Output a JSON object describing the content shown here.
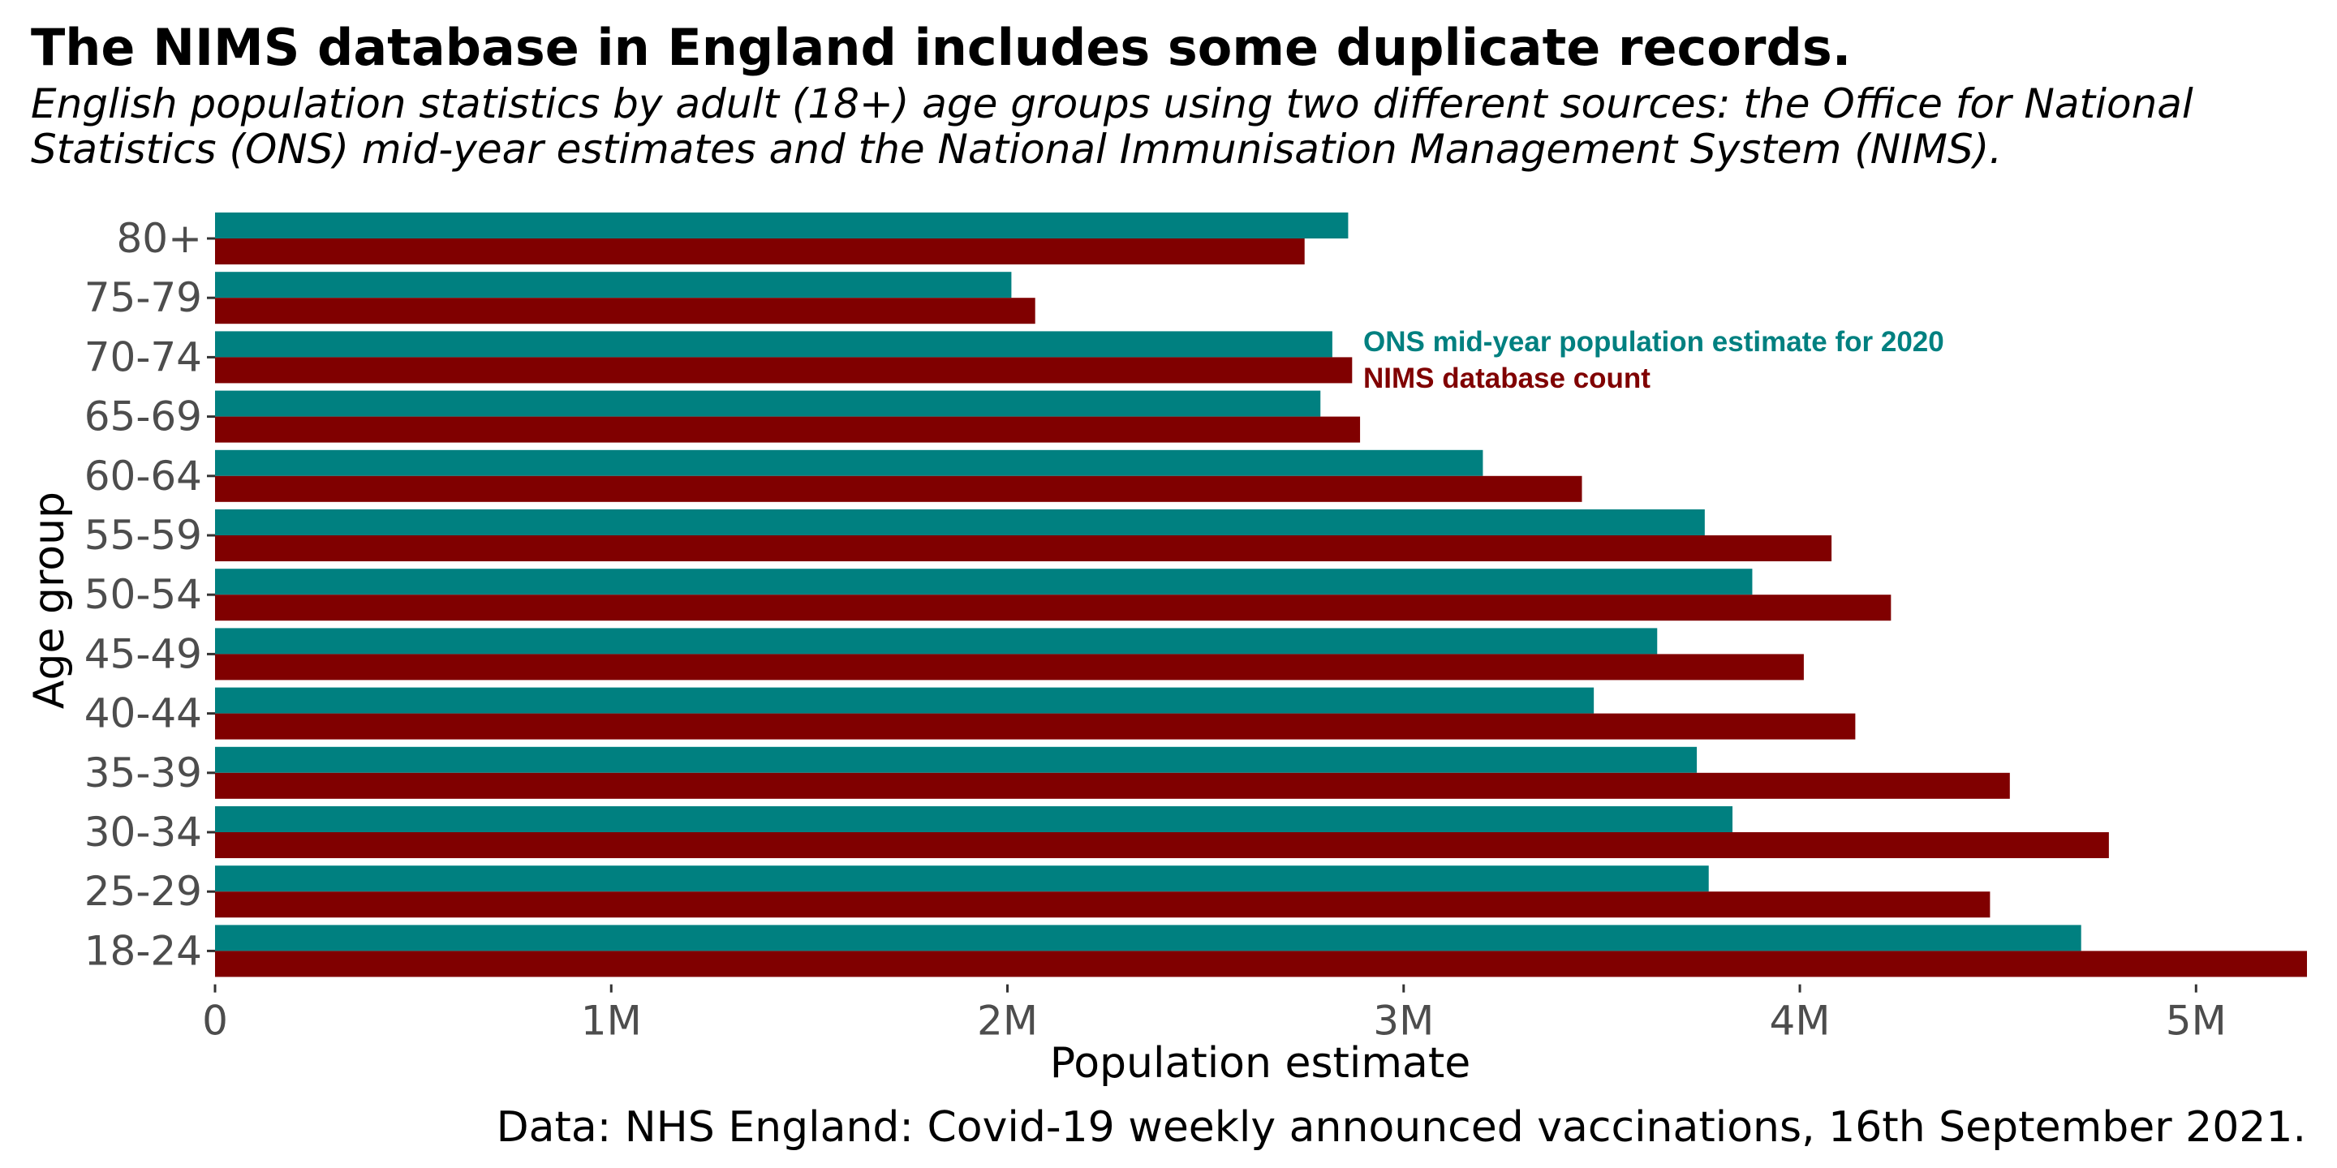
{
  "title": "The NIMS database in England includes some duplicate records.",
  "subtitle": "English population statistics by adult (18+) age groups using two different sources: the Office for National Statistics (ONS) mid-year estimates and the National Immunisation Management System (NIMS).",
  "caption": "Data: NHS England: Covid-19 weekly announced vaccinations, 16th September 2021.",
  "colors": {
    "ons": "#008080",
    "nims": "#800000"
  },
  "chart_data": {
    "type": "bar",
    "orientation": "horizontal",
    "xlabel": "Population estimate",
    "ylabel": "Age group",
    "xlim": [
      0,
      5280000
    ],
    "x_ticks": [
      0,
      1000000,
      2000000,
      3000000,
      4000000,
      5000000
    ],
    "x_tick_labels": [
      "0",
      "1M",
      "2M",
      "3M",
      "4M",
      "5M"
    ],
    "categories": [
      "80+",
      "75-79",
      "70-74",
      "65-69",
      "60-64",
      "55-59",
      "50-54",
      "45-49",
      "40-44",
      "35-39",
      "30-34",
      "25-29",
      "18-24"
    ],
    "series": [
      {
        "name": "ONS mid-year population estimate for 2020",
        "values": [
          2860000,
          2010000,
          2820000,
          2790000,
          3200000,
          3760000,
          3880000,
          3640000,
          3480000,
          3740000,
          3830000,
          3770000,
          4710000
        ]
      },
      {
        "name": "NIMS database count",
        "values": [
          2750000,
          2070000,
          2870000,
          2890000,
          3450000,
          4080000,
          4230000,
          4010000,
          4140000,
          4530000,
          4780000,
          4480000,
          5280000
        ]
      }
    ],
    "grid": false,
    "legend_position": "inside, top-center"
  }
}
